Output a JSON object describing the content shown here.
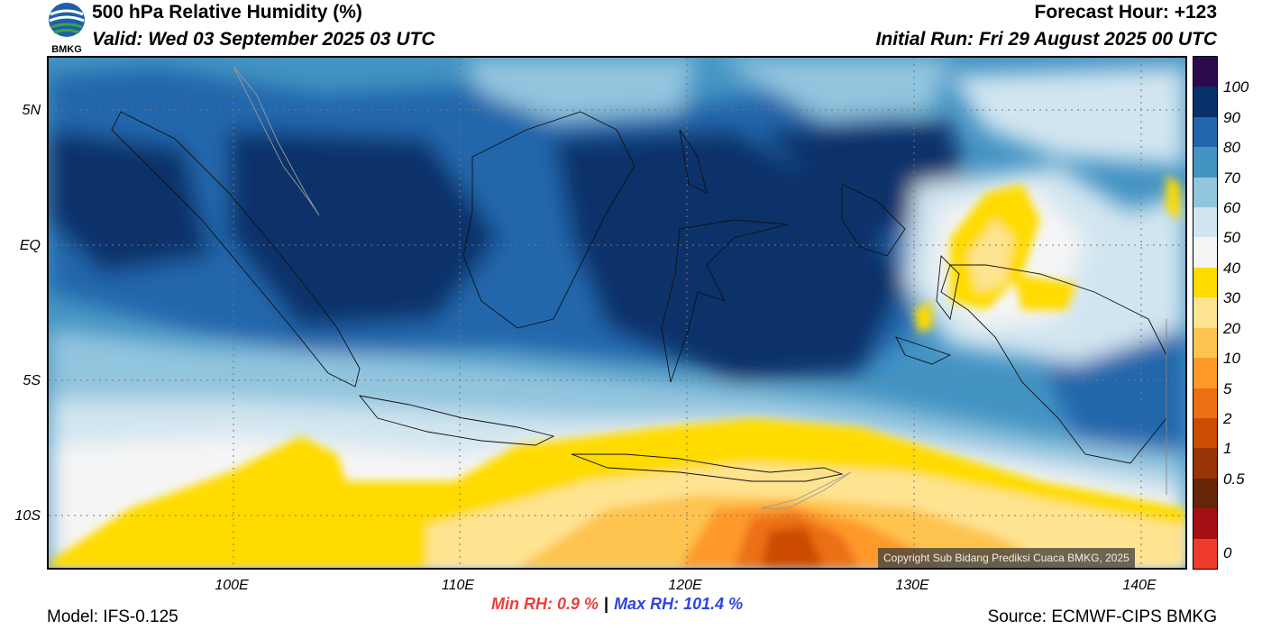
{
  "header": {
    "title": "500 hPa Relative Humidity (%)",
    "valid": "Valid: Wed 03 September 2025 03 UTC",
    "forecast_hour": "Forecast Hour: +123",
    "initial_run": "Initial Run: Fri 29 August 2025 00 UTC"
  },
  "logo": {
    "text": "BMKG",
    "icon": "bmkg-logo-icon"
  },
  "map": {
    "lat_labels": [
      "5N",
      "EQ",
      "5S",
      "10S"
    ],
    "lon_labels": [
      "100E",
      "110E",
      "120E",
      "130E",
      "140E"
    ],
    "copyright": "Copyright Sub Bidang Prediksi Cuaca BMKG, 2025"
  },
  "colorbar": {
    "labels": [
      "100",
      "90",
      "80",
      "70",
      "60",
      "50",
      "40",
      "30",
      "20",
      "10",
      "5",
      "2",
      "1",
      "0.5",
      "0"
    ],
    "colors": [
      "#2d0a4e",
      "#08306b",
      "#2166ac",
      "#4393c3",
      "#92c5de",
      "#d1e5f0",
      "#f5f5f5",
      "#ffdb00",
      "#fee391",
      "#fec44f",
      "#fe9929",
      "#ec7014",
      "#cc4c02",
      "#993404",
      "#662506",
      "#a50f15",
      "#ef3b2c"
    ]
  },
  "footer": {
    "min_rh": "Min RH:   0.9 %",
    "separator": "|",
    "max_rh": "Max RH: 101.4 %",
    "model": "Model: IFS-0.125",
    "source": "Source: ECMWF-CIPS BMKG"
  }
}
